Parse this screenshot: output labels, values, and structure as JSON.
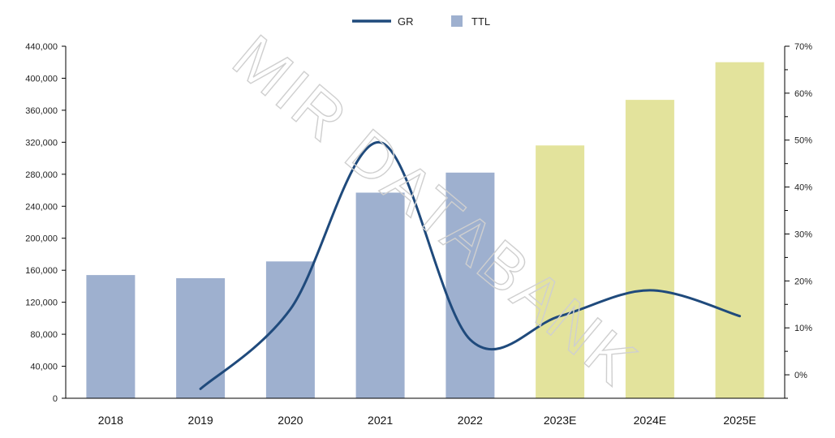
{
  "chart_data": {
    "type": "bar",
    "categories": [
      "2018",
      "2019",
      "2020",
      "2021",
      "2022",
      "2023E",
      "2024E",
      "2025E"
    ],
    "series": [
      {
        "name": "TTL",
        "type": "bar",
        "axis": "left",
        "values": [
          154000,
          150000,
          171000,
          257000,
          282000,
          316000,
          373000,
          420000
        ],
        "colors": [
          "#9eb0cf",
          "#9eb0cf",
          "#9eb0cf",
          "#9eb0cf",
          "#9eb0cf",
          "#e3e39c",
          "#e3e39c",
          "#e3e39c"
        ]
      },
      {
        "name": "GR",
        "type": "line",
        "axis": "right",
        "values": [
          null,
          -3.0,
          14.0,
          49.5,
          7.5,
          12.5,
          18.0,
          12.5
        ],
        "color": "#1f4a7c"
      }
    ],
    "left_axis": {
      "ylim": [
        0,
        440000
      ],
      "ticks": [
        0,
        40000,
        80000,
        120000,
        160000,
        200000,
        240000,
        280000,
        320000,
        360000,
        400000,
        440000
      ],
      "tick_labels": [
        "0",
        "40,000",
        "80,000",
        "120,000",
        "160,000",
        "200,000",
        "240,000",
        "280,000",
        "320,000",
        "360,000",
        "400,000",
        "440,000"
      ]
    },
    "right_axis": {
      "ylim": [
        -5,
        70
      ],
      "ticks": [
        0,
        10,
        20,
        30,
        40,
        50,
        60,
        70
      ],
      "tick_labels": [
        "0%",
        "10%",
        "20%",
        "30%",
        "40%",
        "50%",
        "60%",
        "70%"
      ]
    },
    "legend": {
      "position": "top-center",
      "entries": [
        {
          "label": "GR",
          "kind": "line",
          "color": "#1f4a7c"
        },
        {
          "label": "TTL",
          "kind": "bar",
          "color": "#9eb0cf"
        }
      ]
    },
    "watermark": "MIR DATABANK",
    "grid": false
  }
}
